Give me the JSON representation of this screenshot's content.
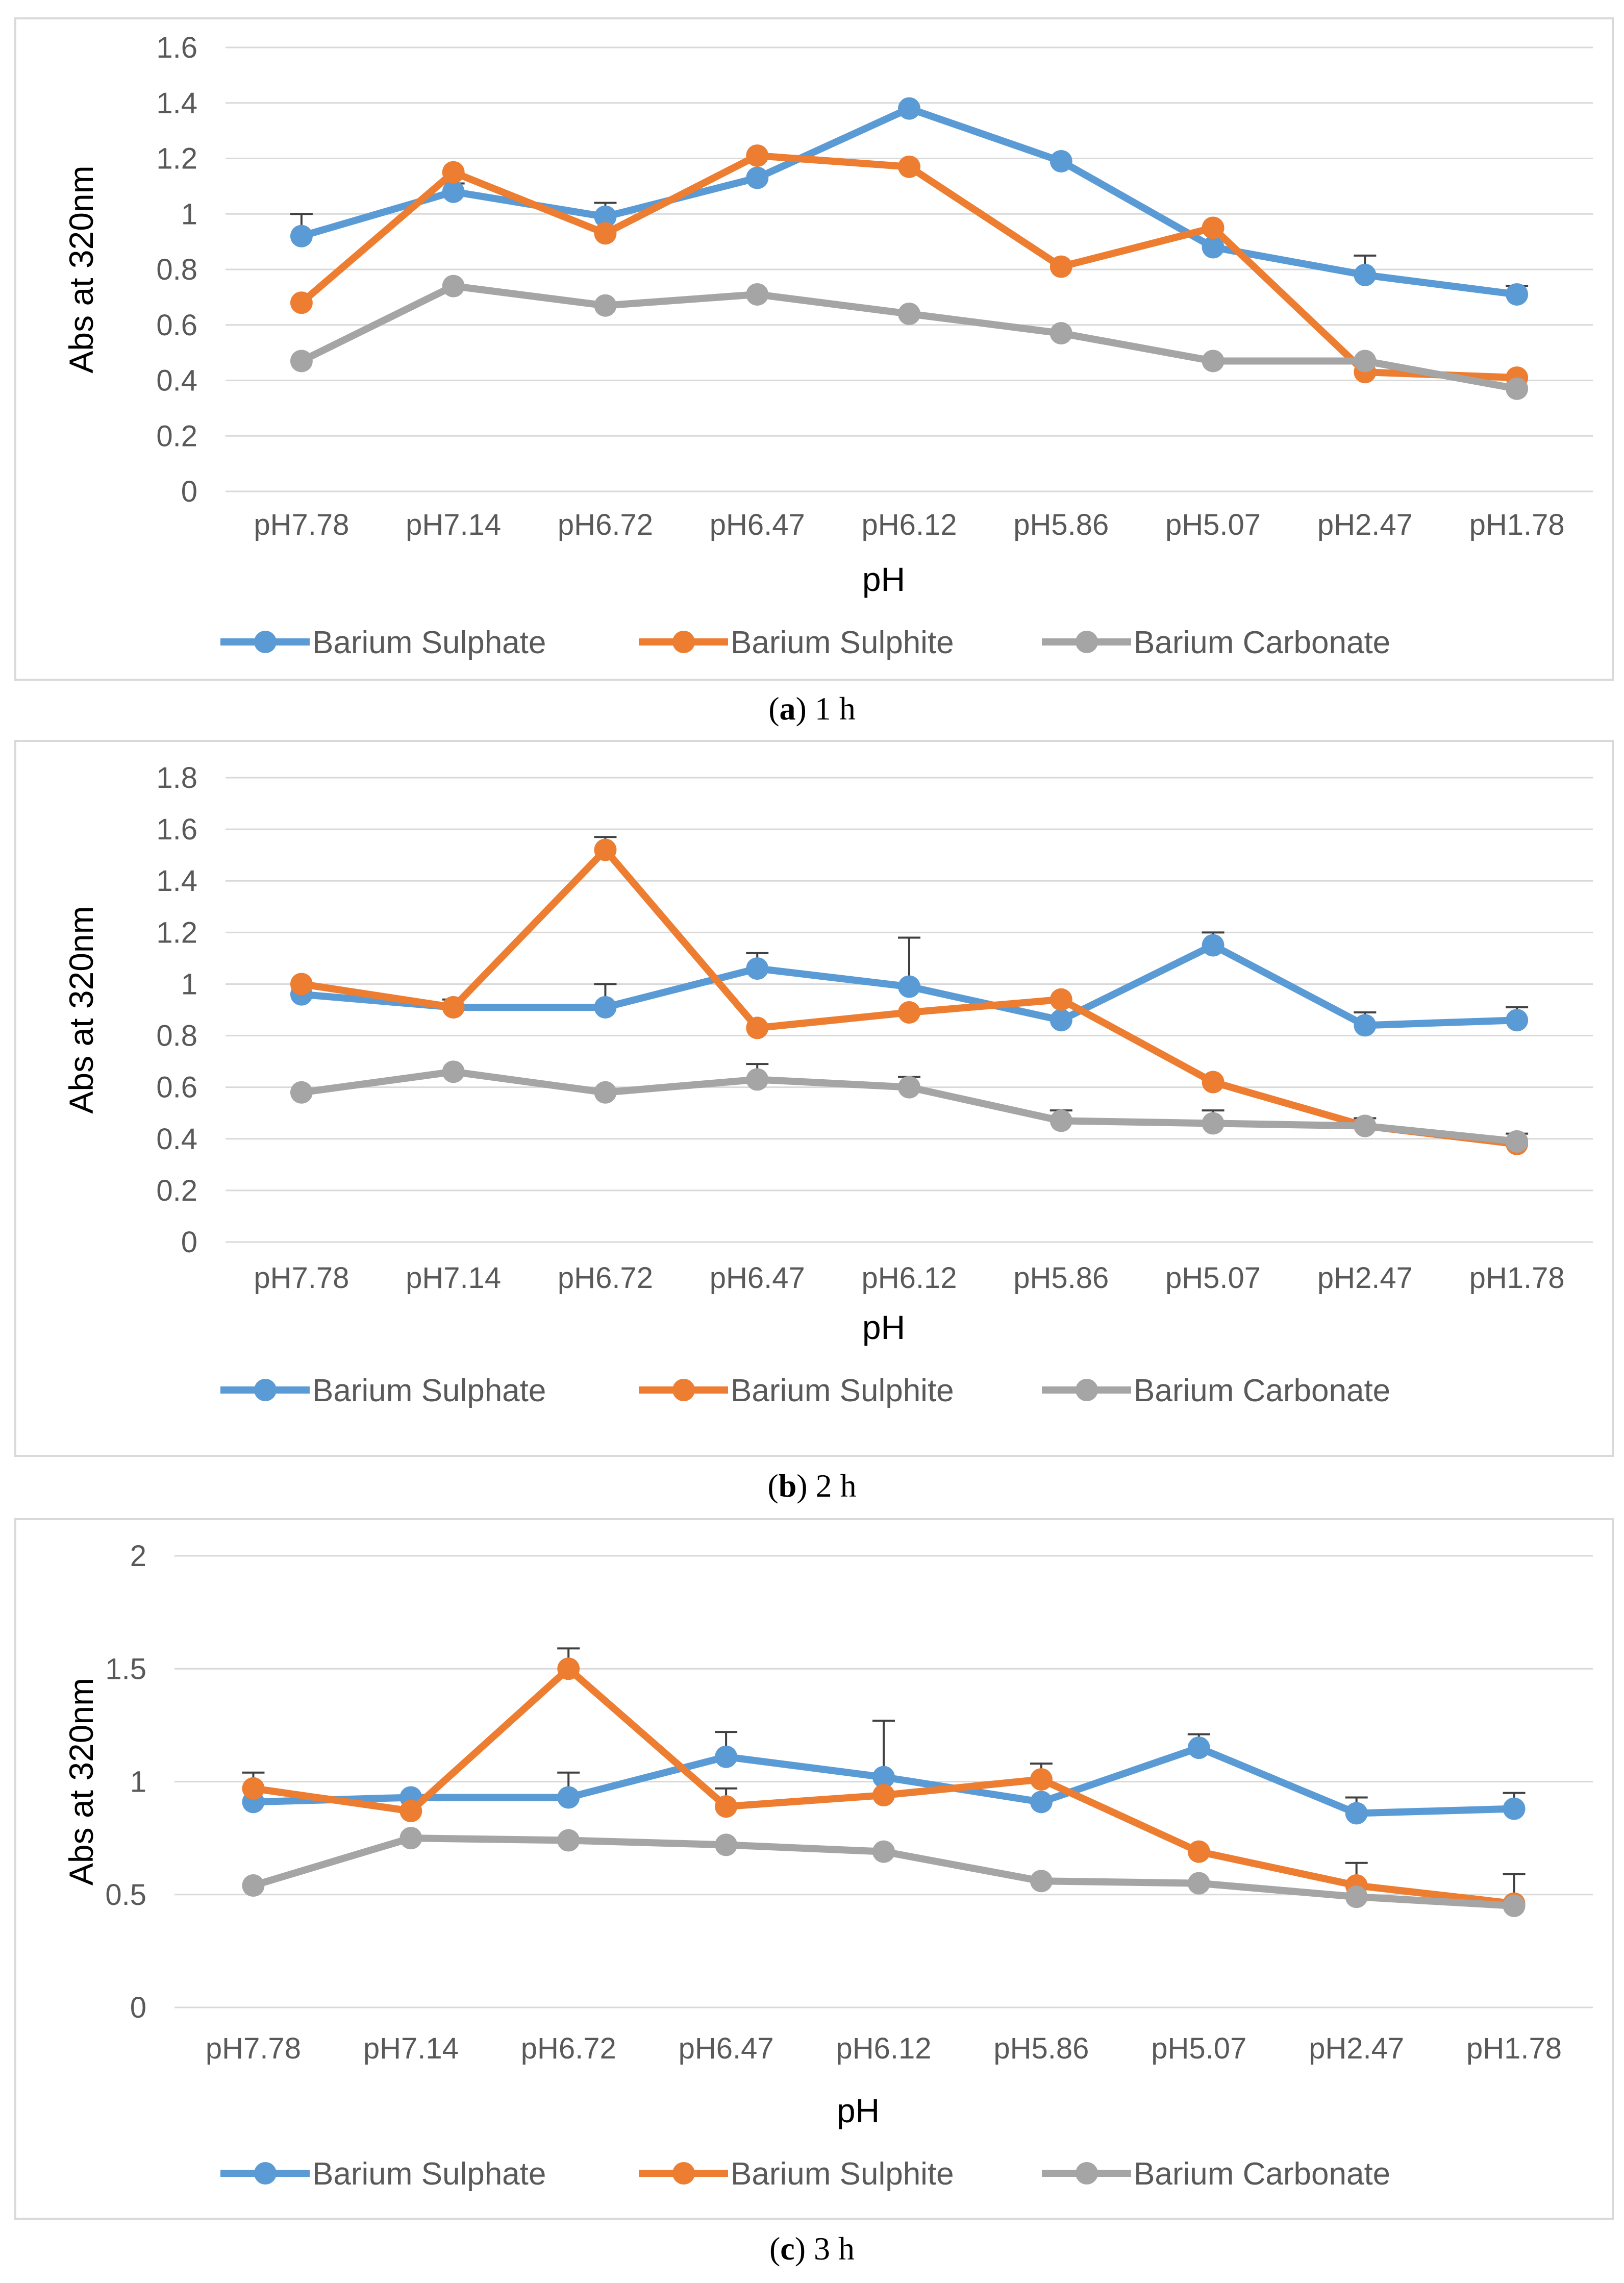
{
  "chart_data": [
    {
      "type": "line",
      "caption_letter": "a",
      "caption_rest": " 1 h",
      "xlabel": "pH",
      "ylabel": "Abs at 320nm",
      "categories": [
        "pH7.78",
        "pH7.14",
        "pH6.72",
        "pH6.47",
        "pH6.12",
        "pH5.86",
        "pH5.07",
        "pH2.47",
        "pH1.78"
      ],
      "ylim": [
        0,
        1.6
      ],
      "yticks": [
        "0",
        "0.2",
        "0.4",
        "0.6",
        "0.8",
        "1",
        "1.2",
        "1.4",
        "1.6"
      ],
      "legend_position": "bottom",
      "series": [
        {
          "name": "Barium Sulphate",
          "color": "#5b9bd5",
          "values": [
            0.92,
            1.08,
            0.99,
            1.13,
            1.38,
            1.19,
            0.88,
            0.78,
            0.71
          ],
          "errors": [
            0.08,
            0.03,
            0.05,
            0.0,
            0.0,
            0.0,
            0.0,
            0.07,
            0.03
          ]
        },
        {
          "name": "Barium Sulphite",
          "color": "#ed7d31",
          "values": [
            0.68,
            1.15,
            0.93,
            1.21,
            1.17,
            0.81,
            0.95,
            0.43,
            0.41
          ],
          "errors": [
            0,
            0,
            0,
            0,
            0,
            0,
            0,
            0,
            0
          ]
        },
        {
          "name": "Barium Carbonate",
          "color": "#a5a5a5",
          "values": [
            0.47,
            0.74,
            0.67,
            0.71,
            0.64,
            0.57,
            0.47,
            0.47,
            0.37
          ],
          "errors": [
            0,
            0,
            0,
            0,
            0,
            0,
            0,
            0,
            0
          ]
        }
      ]
    },
    {
      "type": "line",
      "caption_letter": "b",
      "caption_rest": " 2 h",
      "xlabel": "pH",
      "ylabel": "Abs at 320nm",
      "categories": [
        "pH7.78",
        "pH7.14",
        "pH6.72",
        "pH6.47",
        "pH6.12",
        "pH5.86",
        "pH5.07",
        "pH2.47",
        "pH1.78"
      ],
      "ylim": [
        0,
        1.8
      ],
      "yticks": [
        "0",
        "0.2",
        "0.4",
        "0.6",
        "0.8",
        "1",
        "1.2",
        "1.4",
        "1.6",
        "1.8"
      ],
      "legend_position": "bottom",
      "series": [
        {
          "name": "Barium Sulphate",
          "color": "#5b9bd5",
          "values": [
            0.96,
            0.91,
            0.91,
            1.06,
            0.99,
            0.86,
            1.15,
            0.84,
            0.86
          ],
          "errors": [
            0,
            0.03,
            0.09,
            0.06,
            0.19,
            0,
            0.05,
            0.05,
            0.05
          ]
        },
        {
          "name": "Barium Sulphite",
          "color": "#ed7d31",
          "values": [
            1.0,
            0.91,
            1.52,
            0.83,
            0.89,
            0.94,
            0.62,
            0.45,
            0.38
          ],
          "errors": [
            0,
            0,
            0.05,
            0,
            0,
            0,
            0,
            0,
            0
          ]
        },
        {
          "name": "Barium Carbonate",
          "color": "#a5a5a5",
          "values": [
            0.58,
            0.66,
            0.58,
            0.63,
            0.6,
            0.47,
            0.46,
            0.45,
            0.39
          ],
          "errors": [
            0,
            0,
            0,
            0.06,
            0.04,
            0.04,
            0.05,
            0.03,
            0.03
          ]
        }
      ]
    },
    {
      "type": "line",
      "caption_letter": "c",
      "caption_rest": " 3 h",
      "xlabel": "pH",
      "ylabel": "Abs at 320nm",
      "categories": [
        "pH7.78",
        "pH7.14",
        "pH6.72",
        "pH6.47",
        "pH6.12",
        "pH5.86",
        "pH5.07",
        "pH2.47",
        "pH1.78"
      ],
      "ylim": [
        0,
        2
      ],
      "yticks": [
        "0",
        "0.5",
        "1",
        "1.5",
        "2"
      ],
      "legend_position": "bottom",
      "series": [
        {
          "name": "Barium Sulphate",
          "color": "#5b9bd5",
          "values": [
            0.91,
            0.93,
            0.93,
            1.11,
            1.02,
            0.91,
            1.15,
            0.86,
            0.88
          ],
          "errors": [
            0,
            0,
            0.11,
            0.11,
            0.25,
            0,
            0.06,
            0.07,
            0.07
          ]
        },
        {
          "name": "Barium Sulphite",
          "color": "#ed7d31",
          "values": [
            0.97,
            0.87,
            1.5,
            0.89,
            0.94,
            1.01,
            0.69,
            0.54,
            0.46
          ],
          "errors": [
            0.07,
            0,
            0.09,
            0.08,
            0,
            0.07,
            0,
            0.1,
            0.13
          ]
        },
        {
          "name": "Barium Carbonate",
          "color": "#a5a5a5",
          "values": [
            0.54,
            0.75,
            0.74,
            0.72,
            0.69,
            0.56,
            0.55,
            0.49,
            0.45
          ],
          "errors": [
            0,
            0,
            0,
            0,
            0,
            0,
            0,
            0,
            0
          ]
        }
      ]
    }
  ]
}
